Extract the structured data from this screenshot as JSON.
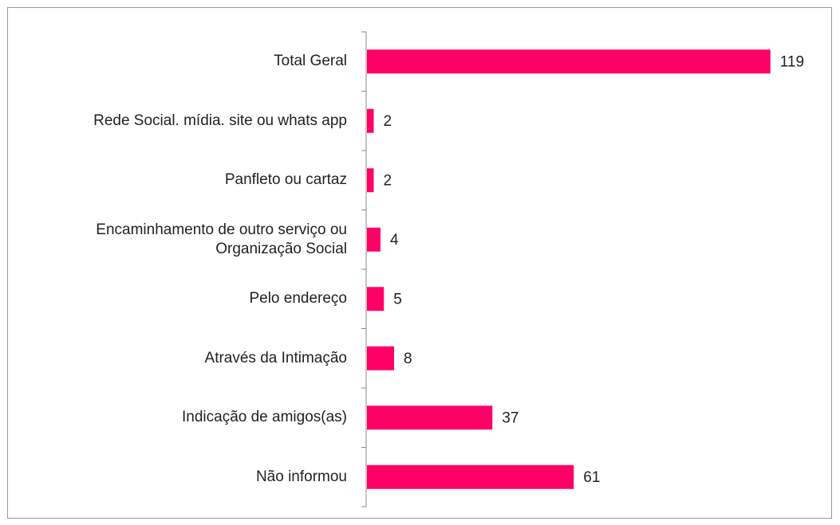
{
  "chart_data": {
    "type": "bar",
    "orientation": "horizontal",
    "categories": [
      "Total Geral",
      "Rede Social. mídia. site ou whats app",
      "Panfleto ou cartaz",
      "Encaminhamento de outro serviço ou Organização Social",
      "Pelo endereço",
      "Através da Intimação",
      "Indicação de amigos(as)",
      "Não informou"
    ],
    "values": [
      119,
      2,
      2,
      4,
      5,
      8,
      37,
      61
    ],
    "color": "#ff0066"
  }
}
